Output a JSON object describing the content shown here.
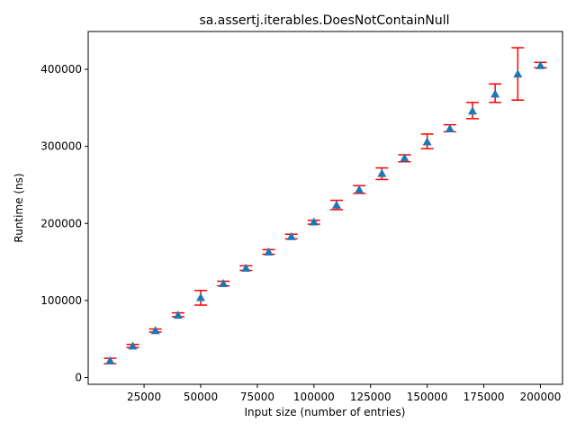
{
  "chart_data": {
    "type": "scatter",
    "title": "sa.assertj.iterables.DoesNotContainNull",
    "xlabel": "Input size (number of entries)",
    "ylabel": "Runtime (ns)",
    "xlim": [
      2500,
      209500
    ],
    "ylim": [
      0,
      450000
    ],
    "xticks": [
      25000,
      50000,
      75000,
      100000,
      125000,
      150000,
      175000,
      200000
    ],
    "yticks": [
      0,
      100000,
      200000,
      300000,
      400000
    ],
    "grid": false,
    "marker": "triangle-up",
    "colors": {
      "marker": "#1f77b4",
      "errorbar": "#ff0000"
    },
    "series": [
      {
        "x": [
          10000,
          20000,
          30000,
          40000,
          50000,
          60000,
          70000,
          80000,
          90000,
          100000,
          110000,
          120000,
          130000,
          140000,
          150000,
          160000,
          170000,
          180000,
          190000,
          200000
        ],
        "y": [
          22000,
          41000,
          61000,
          81000,
          104000,
          122000,
          142000,
          163000,
          183000,
          202000,
          224000,
          244000,
          265000,
          285000,
          306000,
          323000,
          346000,
          368000,
          394000,
          405000
        ],
        "err_low": [
          18000,
          39000,
          59000,
          79000,
          94000,
          119000,
          139000,
          160000,
          180000,
          199000,
          218000,
          239000,
          257000,
          280000,
          297000,
          319000,
          336000,
          357000,
          360000,
          402000
        ],
        "err_high": [
          25000,
          43000,
          63000,
          84000,
          113000,
          125000,
          145000,
          166000,
          186000,
          204000,
          230000,
          249000,
          272000,
          289000,
          316000,
          328000,
          357000,
          381000,
          428000,
          409000
        ]
      }
    ]
  }
}
